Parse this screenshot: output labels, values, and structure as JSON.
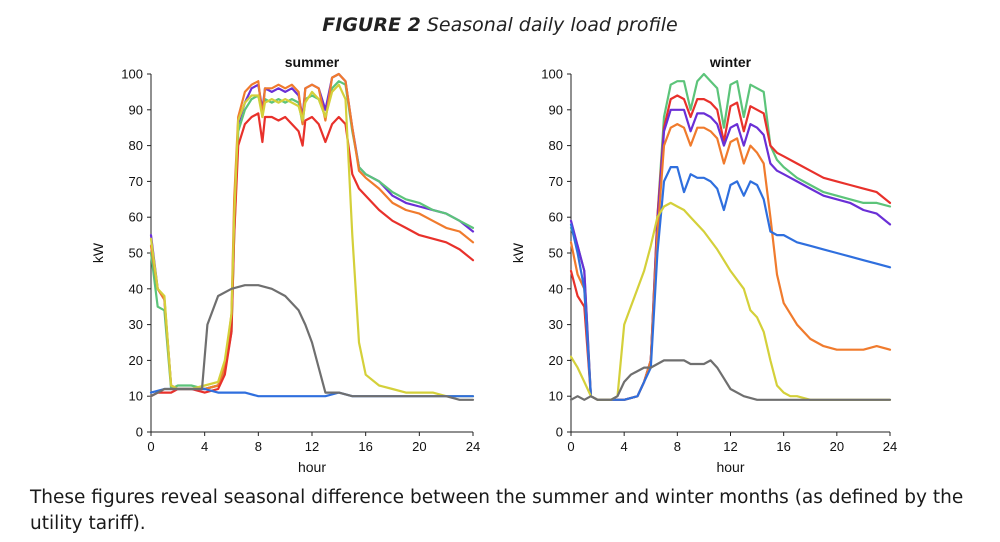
{
  "figure": {
    "label": "FIGURE 2",
    "title": "Seasonal daily load profile",
    "caption": "These figures reveal seasonal difference between the summer and winter months (as defined by the utility tariff)."
  },
  "colors": {
    "red": "#e8312b",
    "orange": "#f07b2d",
    "green": "#5cc47a",
    "purple": "#6a2fd6",
    "yellow": "#d4d03a",
    "blue": "#2f6fde",
    "gray": "#6f6f6f"
  },
  "chart_data": [
    {
      "type": "line",
      "title": "summer",
      "xlabel": "hour",
      "ylabel": "kW",
      "xlim": [
        0,
        24
      ],
      "ylim": [
        0,
        100
      ],
      "xticks": [
        0,
        4,
        8,
        12,
        16,
        20,
        24
      ],
      "yticks": [
        0,
        10,
        20,
        30,
        40,
        50,
        60,
        70,
        80,
        90,
        100
      ],
      "grid": false,
      "series": [
        {
          "color": "purple",
          "x": [
            0,
            0.5,
            1,
            1.5,
            2,
            3,
            4,
            5,
            5.5,
            6,
            6.2,
            6.5,
            7,
            7.5,
            8,
            8.3,
            8.5,
            9,
            9.5,
            10,
            10.5,
            11,
            11.3,
            11.5,
            12,
            12.5,
            13,
            13.5,
            14,
            14.5,
            15,
            15.5,
            16,
            17,
            18,
            19,
            20,
            21,
            22,
            23,
            24
          ],
          "y": [
            55,
            40,
            37,
            13,
            12,
            12,
            12,
            13,
            18,
            30,
            60,
            86,
            92,
            96,
            97,
            90,
            96,
            95,
            96,
            95,
            96,
            94,
            88,
            96,
            97,
            96,
            90,
            99,
            100,
            98,
            85,
            74,
            72,
            70,
            66,
            64,
            63,
            62,
            61,
            59,
            56
          ]
        },
        {
          "color": "green",
          "x": [
            0,
            0.5,
            1,
            1.5,
            2,
            3,
            4,
            5,
            5.5,
            6,
            6.2,
            6.5,
            7,
            7.5,
            8,
            8.3,
            8.5,
            9,
            9.5,
            10,
            10.5,
            11,
            11.3,
            11.5,
            12,
            12.5,
            13,
            13.5,
            14,
            14.5,
            15,
            15.5,
            16,
            17,
            18,
            19,
            20,
            21,
            22,
            23,
            24
          ],
          "y": [
            50,
            35,
            34,
            12,
            13,
            13,
            12,
            13,
            17,
            28,
            55,
            84,
            90,
            93,
            94,
            89,
            93,
            92,
            93,
            92,
            93,
            92,
            86,
            93,
            94,
            93,
            88,
            96,
            98,
            97,
            84,
            74,
            72,
            70,
            67,
            65,
            64,
            62,
            61,
            59,
            57
          ]
        },
        {
          "color": "orange",
          "x": [
            0,
            0.5,
            1,
            1.5,
            2,
            3,
            4,
            5,
            5.5,
            6,
            6.2,
            6.5,
            7,
            7.5,
            8,
            8.3,
            8.5,
            9,
            9.5,
            10,
            10.5,
            11,
            11.3,
            11.5,
            12,
            12.5,
            13,
            13.5,
            14,
            14.5,
            15,
            15.5,
            16,
            17,
            18,
            19,
            20,
            21,
            22,
            23,
            24
          ],
          "y": [
            52,
            40,
            37,
            13,
            12,
            12,
            12,
            13,
            18,
            33,
            65,
            88,
            95,
            97,
            98,
            88,
            96,
            96,
            97,
            96,
            97,
            95,
            86,
            96,
            97,
            96,
            87,
            99,
            100,
            98,
            85,
            73,
            71,
            68,
            64,
            62,
            61,
            59,
            57,
            56,
            53
          ]
        },
        {
          "color": "red",
          "x": [
            0,
            0.5,
            1,
            1.5,
            2,
            3,
            4,
            5,
            5.5,
            6,
            6.2,
            6.5,
            7,
            7.5,
            8,
            8.3,
            8.5,
            9,
            9.5,
            10,
            10.5,
            11,
            11.3,
            11.5,
            12,
            12.5,
            13,
            13.5,
            14,
            14.5,
            15,
            15.5,
            16,
            17,
            18,
            19,
            20,
            21,
            22,
            23,
            24
          ],
          "y": [
            10,
            11,
            11,
            11,
            12,
            12,
            11,
            12,
            16,
            28,
            55,
            80,
            86,
            88,
            89,
            81,
            88,
            88,
            87,
            88,
            86,
            84,
            80,
            87,
            88,
            86,
            81,
            86,
            88,
            86,
            72,
            68,
            66,
            62,
            59,
            57,
            55,
            54,
            53,
            51,
            48
          ]
        },
        {
          "color": "yellow",
          "x": [
            0,
            0.5,
            1,
            1.5,
            2,
            3,
            4,
            5,
            5.5,
            6,
            6.2,
            6.5,
            7,
            7.5,
            8,
            8.3,
            8.5,
            9,
            9.5,
            10,
            10.5,
            11,
            11.3,
            11.5,
            12,
            12.5,
            13,
            13.5,
            14,
            14.5,
            15,
            15.5,
            16,
            17,
            18,
            19,
            20,
            21,
            22,
            23,
            24
          ],
          "y": [
            54,
            40,
            38,
            13,
            12,
            12,
            13,
            14,
            20,
            33,
            60,
            87,
            92,
            94,
            94,
            88,
            92,
            93,
            92,
            93,
            92,
            91,
            87,
            92,
            95,
            93,
            88,
            95,
            97,
            93,
            55,
            25,
            16,
            13,
            12,
            11,
            11,
            11,
            10,
            10,
            10
          ]
        },
        {
          "color": "blue",
          "x": [
            0,
            1,
            2,
            3,
            4,
            5,
            6,
            7,
            8,
            9,
            10,
            11,
            12,
            13,
            14,
            15,
            16,
            17,
            18,
            19,
            20,
            21,
            22,
            23,
            24
          ],
          "y": [
            11,
            12,
            12,
            12,
            12,
            11,
            11,
            11,
            10,
            10,
            10,
            10,
            10,
            10,
            11,
            10,
            10,
            10,
            10,
            10,
            10,
            10,
            10,
            10,
            10
          ]
        },
        {
          "color": "gray",
          "x": [
            0,
            1,
            2,
            3,
            3.8,
            4.2,
            5,
            6,
            7,
            7.5,
            8,
            9,
            10,
            11,
            11.5,
            12,
            12.5,
            13,
            14,
            15,
            16,
            17,
            18,
            19,
            20,
            21,
            22,
            23,
            24
          ],
          "y": [
            10,
            12,
            12,
            12,
            12,
            30,
            38,
            40,
            41,
            41,
            41,
            40,
            38,
            34,
            30,
            25,
            18,
            11,
            11,
            10,
            10,
            10,
            10,
            10,
            10,
            10,
            10,
            9,
            9
          ]
        }
      ]
    },
    {
      "type": "line",
      "title": "winter",
      "xlabel": "hour",
      "ylabel": "kW",
      "xlim": [
        0,
        24
      ],
      "ylim": [
        0,
        100
      ],
      "xticks": [
        0,
        4,
        8,
        12,
        16,
        20,
        24
      ],
      "yticks": [
        0,
        10,
        20,
        30,
        40,
        50,
        60,
        70,
        80,
        90,
        100
      ],
      "grid": false,
      "series": [
        {
          "color": "green",
          "x": [
            0,
            0.5,
            1,
            1.5,
            2,
            3,
            4,
            5,
            5.5,
            6,
            6.5,
            7,
            7.5,
            8,
            8.5,
            9,
            9.5,
            10,
            10.5,
            11,
            11.5,
            12,
            12.5,
            13,
            13.5,
            14,
            14.5,
            15,
            15.5,
            16,
            17,
            18,
            19,
            20,
            21,
            22,
            23,
            24
          ],
          "y": [
            57,
            52,
            45,
            10,
            9,
            9,
            9,
            10,
            14,
            20,
            60,
            88,
            97,
            98,
            98,
            90,
            98,
            100,
            98,
            96,
            85,
            97,
            98,
            88,
            97,
            96,
            95,
            80,
            76,
            74,
            71,
            69,
            67,
            66,
            65,
            64,
            64,
            63
          ]
        },
        {
          "color": "red",
          "x": [
            0,
            0.5,
            1,
            1.5,
            2,
            3,
            4,
            5,
            5.5,
            6,
            6.5,
            7,
            7.5,
            8,
            8.5,
            9,
            9.5,
            10,
            10.5,
            11,
            11.5,
            12,
            12.5,
            13,
            13.5,
            14,
            14.5,
            15,
            15.5,
            16,
            17,
            18,
            19,
            20,
            21,
            22,
            23,
            24
          ],
          "y": [
            45,
            38,
            35,
            10,
            9,
            9,
            9,
            10,
            14,
            20,
            60,
            85,
            93,
            94,
            93,
            88,
            93,
            93,
            92,
            90,
            81,
            91,
            92,
            84,
            91,
            90,
            89,
            80,
            78,
            77,
            75,
            73,
            71,
            70,
            69,
            68,
            67,
            64
          ]
        },
        {
          "color": "purple",
          "x": [
            0,
            0.5,
            1,
            1.5,
            2,
            3,
            4,
            5,
            5.5,
            6,
            6.5,
            7,
            7.5,
            8,
            8.5,
            9,
            9.5,
            10,
            10.5,
            11,
            11.5,
            12,
            12.5,
            13,
            13.5,
            14,
            14.5,
            15,
            15.5,
            16,
            17,
            18,
            19,
            20,
            21,
            22,
            23,
            24
          ],
          "y": [
            59,
            52,
            45,
            10,
            9,
            9,
            9,
            10,
            14,
            20,
            58,
            84,
            90,
            90,
            90,
            84,
            89,
            89,
            88,
            86,
            80,
            85,
            86,
            80,
            86,
            85,
            83,
            75,
            73,
            72,
            70,
            68,
            66,
            65,
            64,
            62,
            61,
            58
          ]
        },
        {
          "color": "orange",
          "x": [
            0,
            0.5,
            1,
            1.5,
            2,
            3,
            4,
            5,
            5.5,
            6,
            6.5,
            7,
            7.5,
            8,
            8.5,
            9,
            9.5,
            10,
            10.5,
            11,
            11.5,
            12,
            12.5,
            13,
            13.5,
            14,
            14.5,
            15,
            15.5,
            16,
            17,
            18,
            19,
            20,
            21,
            22,
            23,
            24
          ],
          "y": [
            53,
            44,
            40,
            10,
            9,
            9,
            9,
            10,
            14,
            20,
            55,
            80,
            85,
            86,
            85,
            80,
            85,
            85,
            84,
            82,
            75,
            81,
            82,
            75,
            80,
            78,
            75,
            60,
            44,
            36,
            30,
            26,
            24,
            23,
            23,
            23,
            24,
            23
          ]
        },
        {
          "color": "blue",
          "x": [
            0,
            0.5,
            1,
            1.5,
            2,
            3,
            4,
            5,
            5.5,
            6,
            6.5,
            7,
            7.5,
            8,
            8.5,
            9,
            9.5,
            10,
            10.5,
            11,
            11.5,
            12,
            12.5,
            13,
            13.5,
            14,
            14.5,
            15,
            15.5,
            16,
            17,
            18,
            19,
            20,
            21,
            22,
            23,
            24
          ],
          "y": [
            58,
            50,
            40,
            10,
            9,
            9,
            9,
            10,
            14,
            18,
            50,
            70,
            74,
            74,
            67,
            72,
            71,
            71,
            70,
            68,
            62,
            69,
            70,
            66,
            70,
            69,
            65,
            56,
            55,
            55,
            53,
            52,
            51,
            50,
            49,
            48,
            47,
            46
          ]
        },
        {
          "color": "yellow",
          "x": [
            0,
            0.5,
            1,
            1.5,
            2,
            3,
            3.5,
            4,
            4.5,
            5,
            5.5,
            6,
            6.5,
            7,
            7.5,
            8,
            8.5,
            9,
            10,
            11,
            12,
            13,
            13.5,
            14,
            14.5,
            15,
            15.5,
            16,
            16.5,
            17,
            18,
            19,
            20,
            21,
            22,
            23,
            24
          ],
          "y": [
            21,
            18,
            14,
            10,
            9,
            9,
            10,
            30,
            35,
            40,
            45,
            52,
            60,
            63,
            64,
            63,
            62,
            60,
            56,
            51,
            45,
            40,
            34,
            32,
            28,
            20,
            13,
            11,
            10,
            10,
            9,
            9,
            9,
            9,
            9,
            9,
            9
          ]
        },
        {
          "color": "gray",
          "x": [
            0,
            0.5,
            1,
            1.5,
            2,
            3,
            3.5,
            4,
            4.5,
            5,
            5.5,
            6,
            6.5,
            7,
            7.5,
            8,
            8.5,
            9,
            10,
            10.5,
            11,
            11.5,
            12,
            13,
            14,
            15,
            16,
            17,
            18,
            19,
            20,
            21,
            22,
            23,
            24
          ],
          "y": [
            9,
            10,
            9,
            10,
            9,
            9,
            10,
            14,
            16,
            17,
            18,
            18,
            19,
            20,
            20,
            20,
            20,
            19,
            19,
            20,
            18,
            15,
            12,
            10,
            9,
            9,
            9,
            9,
            9,
            9,
            9,
            9,
            9,
            9,
            9
          ]
        }
      ]
    }
  ]
}
